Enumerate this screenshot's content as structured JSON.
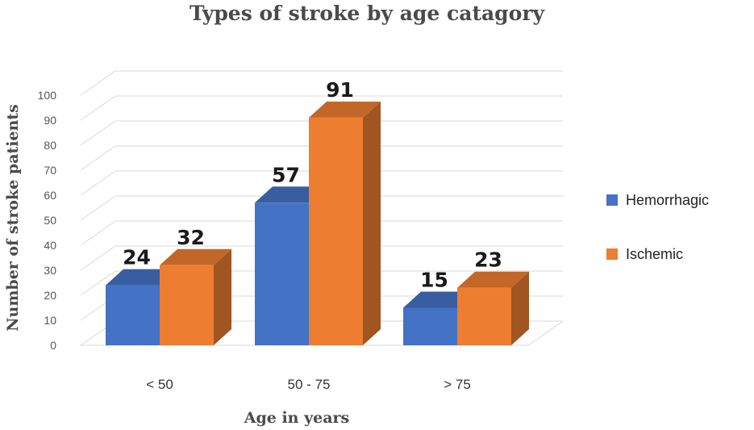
{
  "chart_data": {
    "type": "bar",
    "title": "Types of stroke by age catagory",
    "xlabel": "Age in years",
    "ylabel": "Number  of stroke patients",
    "categories": [
      "< 50",
      "50 - 75",
      "> 75"
    ],
    "series": [
      {
        "name": "Hemorrhagic",
        "values": [
          24,
          57,
          15
        ],
        "color": "#4472c4"
      },
      {
        "name": "Ischemic",
        "values": [
          32,
          91,
          23
        ],
        "color": "#ed7d31"
      }
    ],
    "ylim": [
      0,
      100
    ],
    "yticks": [
      0,
      10,
      20,
      30,
      40,
      50,
      60,
      70,
      80,
      90,
      100
    ],
    "grid": true,
    "legend_position": "right",
    "style": "3d-column"
  }
}
